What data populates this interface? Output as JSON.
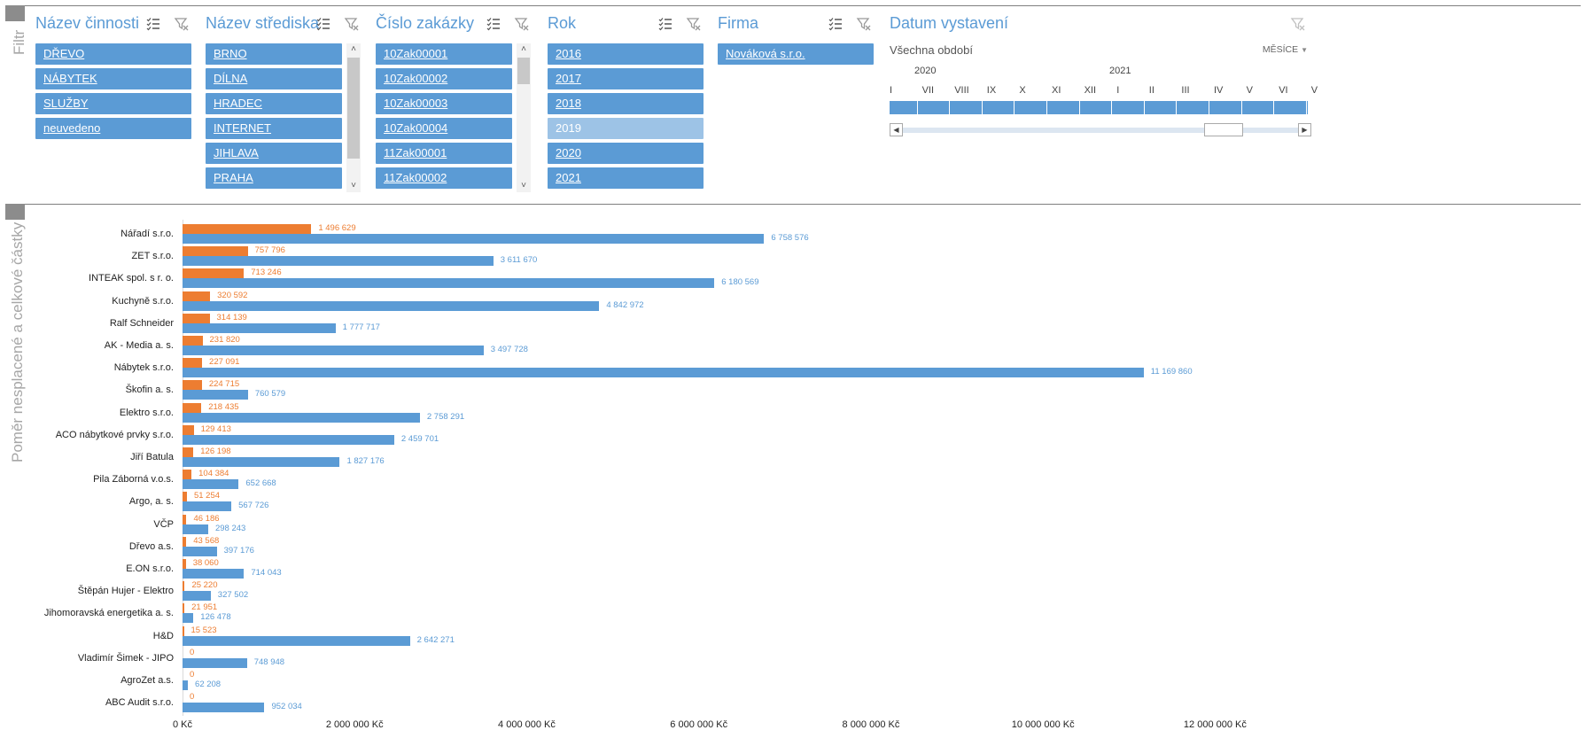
{
  "panels": {
    "filter_label": "Filtr",
    "chart_label": "Poměr nesplacené a celkové částky"
  },
  "slicers": [
    {
      "title": "Název činnosti",
      "items": [
        "DŘEVO",
        "NÁBYTEK",
        "SLUŽBY",
        "neuvedeno"
      ],
      "dim": []
    },
    {
      "title": "Název střediska",
      "items": [
        "BRNO",
        "DÍLNA",
        "HRADEC",
        "INTERNET",
        "JIHLAVA",
        "PRAHA"
      ],
      "dim": []
    },
    {
      "title": "Číslo zakázky",
      "items": [
        "10Zak00001",
        "10Zak00002",
        "10Zak00003",
        "10Zak00004",
        "11Zak00001",
        "11Zak00002"
      ],
      "dim": []
    },
    {
      "title": "Rok",
      "items": [
        "2016",
        "2017",
        "2018",
        "2019",
        "2020",
        "2021"
      ],
      "dim": [
        3
      ]
    },
    {
      "title": "Firma",
      "items": [
        "Nováková s.r.o."
      ],
      "dim": []
    }
  ],
  "timeline": {
    "title": "Datum vystavení",
    "period_label": "Všechna období",
    "level": "MĚSÍCE",
    "years": [
      "2020",
      "2021"
    ],
    "months": [
      "I",
      "VII",
      "VIII",
      "IX",
      "X",
      "XI",
      "XII",
      "I",
      "II",
      "III",
      "IV",
      "V",
      "VI",
      "V"
    ]
  },
  "icons": {
    "multiselect": "multi-select-icon",
    "clear": "clear-filter-icon",
    "scroll_up": "scroll-up-arrow-icon",
    "scroll_down": "scroll-down-arrow-icon"
  },
  "colors": {
    "accent": "#5b9bd5",
    "orange": "#ed7d31",
    "dim": "#9dc3e6"
  },
  "chart_data": {
    "type": "bar",
    "orientation": "horizontal",
    "categories": [
      "Nářadí s.r.o.",
      "ZET s.r.o.",
      "INTEAK spol. s r. o.",
      "Kuchyně s.r.o.",
      "Ralf Schneider",
      "AK - Media a. s.",
      "Nábytek s.r.o.",
      "Škofin a. s.",
      "Elektro s.r.o.",
      "ACO nábytkové prvky s.r.o.",
      "Jiří Batula",
      "Pila Záborná v.o.s.",
      "Argo, a. s.",
      "VČP",
      "Dřevo a.s.",
      "E.ON s.r.o.",
      "Štěpán Hujer - Elektro",
      "Jihomoravská energetika a. s.",
      "H&D",
      "Vladimír Šimek - JIPO",
      "AgroZet a.s.",
      "ABC Audit s.r.o."
    ],
    "series": [
      {
        "values": [
          1496629,
          757796,
          713246,
          320592,
          314139,
          231820,
          227091,
          224715,
          218435,
          129413,
          126198,
          104384,
          51254,
          46186,
          43568,
          38060,
          25220,
          21951,
          15523,
          0,
          0,
          0
        ],
        "labels": [
          "1 496 629",
          "757 796",
          "713 246",
          "320 592",
          "314 139",
          "231 820",
          "227 091",
          "224 715",
          "218 435",
          "129 413",
          "126 198",
          "104 384",
          "51 254",
          "46 186",
          "43 568",
          "38 060",
          "25 220",
          "21 951",
          "15 523",
          "0",
          "0",
          "0"
        ],
        "color": "#ed7d31"
      },
      {
        "values": [
          6758576,
          3611670,
          6180569,
          4842972,
          1777717,
          3497728,
          11169860,
          760579,
          2758291,
          2459701,
          1827176,
          652668,
          567726,
          298243,
          397176,
          714043,
          327502,
          126478,
          2642271,
          748948,
          62208,
          952034
        ],
        "labels": [
          "6 758 576",
          "3 611 670",
          "6 180 569",
          "4 842 972",
          "1 777 717",
          "3 497 728",
          "11 169 860",
          "760 579",
          "2 758 291",
          "2 459 701",
          "1 827 176",
          "652 668",
          "567 726",
          "298 243",
          "397 176",
          "714 043",
          "327 502",
          "126 478",
          "2 642 271",
          "748 948",
          "62 208",
          "952 034"
        ],
        "color": "#5b9bd5"
      }
    ],
    "xticks": [
      0,
      2000000,
      4000000,
      6000000,
      8000000,
      10000000,
      12000000
    ],
    "xtick_labels": [
      "0 Kč",
      "2 000 000 Kč",
      "4 000 000 Kč",
      "6 000 000 Kč",
      "8 000 000 Kč",
      "10 000 000 Kč",
      "12 000 000 Kč"
    ],
    "xlim": [
      0,
      13500000
    ],
    "grid": false,
    "legend": "none"
  }
}
